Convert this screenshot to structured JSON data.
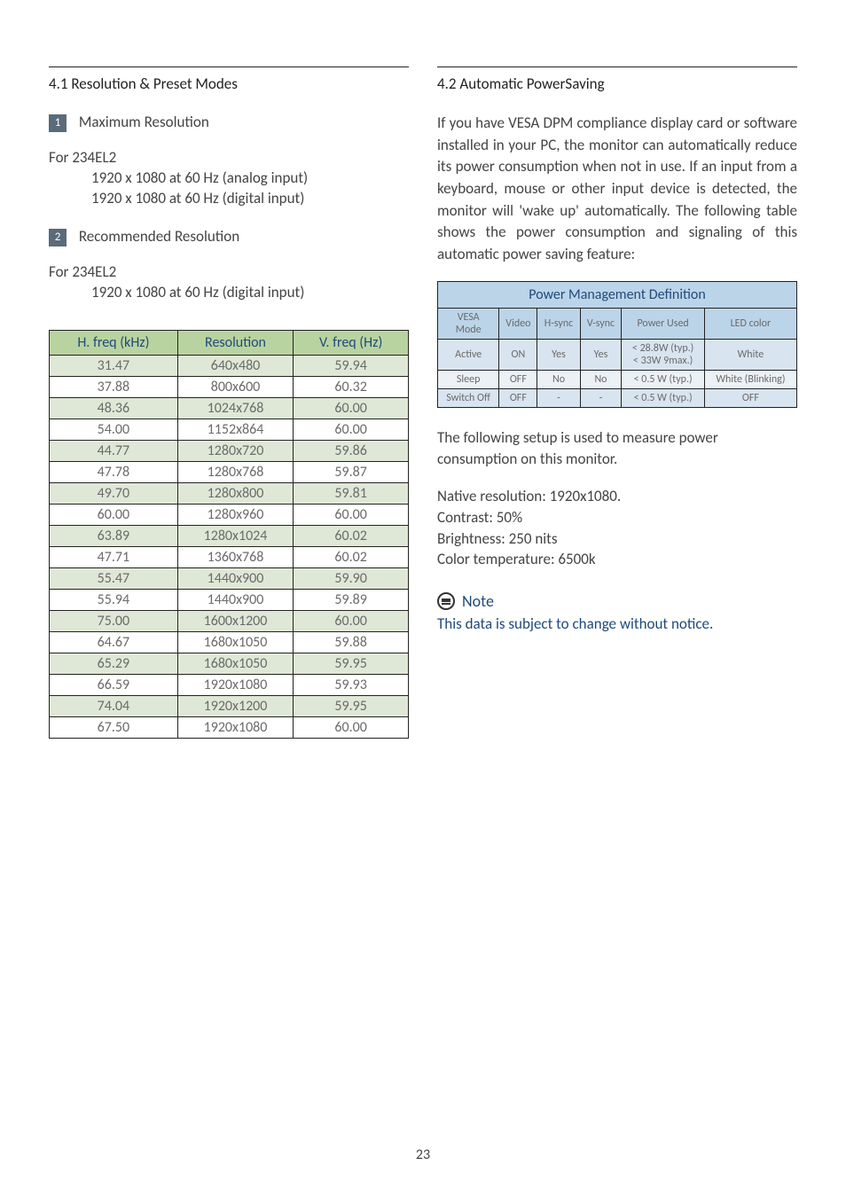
{
  "left": {
    "section_title": "4.1  Resolution & Preset Modes",
    "item1_badge": "1",
    "item1_label": "Maximum Resolution",
    "for1": "For 234EL2",
    "for1_line1": "1920 x 1080 at 60 Hz (analog input)",
    "for1_line2": "1920 x 1080 at 60 Hz (digital input)",
    "item2_badge": "2",
    "item2_label": "Recommended Resolution",
    "for2": "For 234EL2",
    "for2_line1": "1920 x 1080 at 60 Hz (digital input)",
    "res_table": {
      "headers": [
        "H. freq (kHz)",
        "Resolution",
        "V. freq (Hz)"
      ],
      "rows": [
        [
          "31.47",
          "640x480",
          "59.94"
        ],
        [
          "37.88",
          "800x600",
          "60.32"
        ],
        [
          "48.36",
          "1024x768",
          "60.00"
        ],
        [
          "54.00",
          "1152x864",
          "60.00"
        ],
        [
          "44.77",
          "1280x720",
          "59.86"
        ],
        [
          "47.78",
          "1280x768",
          "59.87"
        ],
        [
          "49.70",
          "1280x800",
          "59.81"
        ],
        [
          "60.00",
          "1280x960",
          "60.00"
        ],
        [
          "63.89",
          "1280x1024",
          "60.02"
        ],
        [
          "47.71",
          "1360x768",
          "60.02"
        ],
        [
          "55.47",
          "1440x900",
          "59.90"
        ],
        [
          "55.94",
          "1440x900",
          "59.89"
        ],
        [
          "75.00",
          "1600x1200",
          "60.00"
        ],
        [
          "64.67",
          "1680x1050",
          "59.88"
        ],
        [
          "65.29",
          "1680x1050",
          "59.95"
        ],
        [
          "66.59",
          "1920x1080",
          "59.93"
        ],
        [
          "74.04",
          "1920x1200",
          "59.95"
        ],
        [
          "67.50",
          "1920x1080",
          "60.00"
        ]
      ]
    }
  },
  "right": {
    "section_title": "4.2  Automatic PowerSaving",
    "para1": "If you have VESA DPM compliance display card or software installed in your PC, the monitor can automatically reduce its power consumption when not in use. If an input from a keyboard, mouse or other input device is detected, the monitor will 'wake up' automatically. The following table shows the power consumption and signaling of this automatic power saving feature:",
    "pm_table": {
      "caption": "Power Management Definition",
      "headers": [
        "VESA Mode",
        "Video",
        "H-sync",
        "V-sync",
        "Power Used",
        "LED color"
      ],
      "rows": [
        [
          "Active",
          "ON",
          "Yes",
          "Yes",
          "< 28.8W (typ.)\n< 33W 9max.)",
          "White"
        ],
        [
          "Sleep",
          "OFF",
          "No",
          "No",
          "< 0.5 W (typ.)",
          "White (Blinking)"
        ],
        [
          "Switch Off",
          "OFF",
          "-",
          "-",
          "< 0.5 W (typ.)",
          "OFF"
        ]
      ]
    },
    "para2": "The following setup is used to measure power consumption on this monitor.",
    "spec_lines": [
      "Native resolution: 1920x1080.",
      "Contrast: 50%",
      "Brightness: 250 nits",
      "Color temperature: 6500k"
    ],
    "note_label": "Note",
    "note_text": "This data is subject to change without notice."
  },
  "page_number": "23",
  "colors": {
    "green_header": "#b9d3a0",
    "green_row": "#dfe8d6",
    "blue_header": "#bcd4e8",
    "blue_row": "#d8e4ef",
    "blue_text": "#1f4a7a"
  }
}
